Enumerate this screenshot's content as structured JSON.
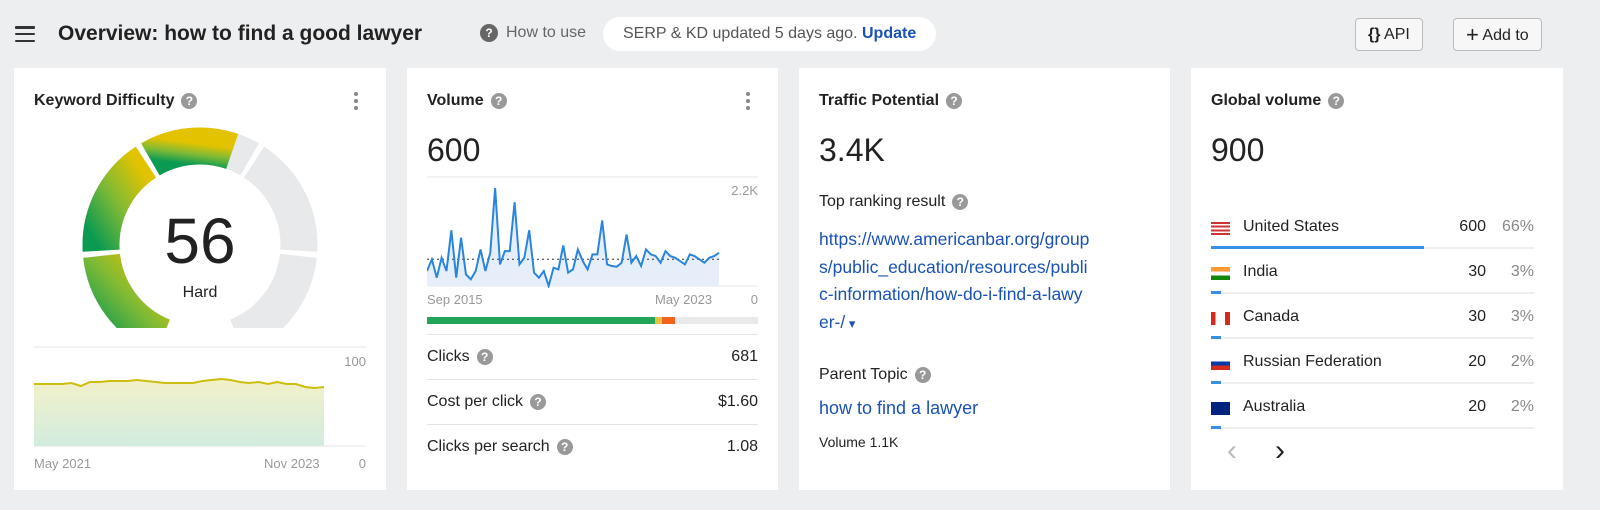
{
  "header": {
    "title": "Overview: how to find a good lawyer",
    "how_to_use": "How to use",
    "serp_status": "SERP & KD updated 5 days ago.",
    "update_link": "Update",
    "api_label": "API",
    "api_icon": "{}",
    "add_label": "Add to",
    "add_icon": "+"
  },
  "kd": {
    "title": "Keyword Difficulty",
    "value": "56",
    "label": "Hard",
    "score": 56,
    "colors": [
      "#0a9a52",
      "#55b046",
      "#9cc228",
      "#d8c205",
      "#e8e9ea"
    ],
    "chart": {
      "type": "area",
      "x_start": "May 2021",
      "x_end": "Nov 2023",
      "y_max_label": "100",
      "y_min_label": "0",
      "ylim": [
        0,
        100
      ],
      "values": [
        62,
        62,
        62,
        62,
        63,
        60,
        64,
        64,
        65,
        65,
        65,
        66,
        65,
        64,
        63,
        63,
        63,
        63,
        65,
        66,
        67,
        66,
        64,
        63,
        64,
        62,
        64,
        62,
        62,
        59,
        58,
        59
      ]
    }
  },
  "volume": {
    "title": "Volume",
    "value": "600",
    "chart": {
      "type": "line",
      "x_start": "Sep 2015",
      "x_end": "May 2023",
      "y_max_label": "2.2K",
      "y_min_label": "0",
      "ylim": [
        0,
        2200
      ],
      "average": 600,
      "values": [
        336,
        597,
        187,
        634,
        336,
        1253,
        187,
        1082,
        261,
        149,
        336,
        821,
        336,
        746,
        2200,
        485,
        783,
        783,
        1880,
        485,
        634,
        1253,
        298,
        187,
        336,
        0,
        410,
        373,
        910,
        298,
        373,
        821,
        560,
        373,
        709,
        709,
        1470,
        485,
        448,
        433,
        522,
        1156,
        522,
        671,
        448,
        821,
        709,
        671,
        522,
        783,
        671,
        634,
        560,
        485,
        709,
        671,
        597,
        522,
        634,
        671,
        746
      ]
    },
    "serp_bar": [
      {
        "share": 69,
        "color": "#22a55b"
      },
      {
        "share": 2,
        "color": "#e9c23f"
      },
      {
        "share": 4,
        "color": "#f2641d"
      }
    ],
    "metrics": [
      {
        "label": "Clicks",
        "value": "681"
      },
      {
        "label": "Cost per click",
        "value": "$1.60"
      },
      {
        "label": "Clicks per search",
        "value": "1.08"
      }
    ]
  },
  "traffic": {
    "title": "Traffic Potential",
    "value": "3.4K",
    "top_label": "Top ranking result",
    "top_url_lines": [
      "https://www.americanbar.org/group",
      "s/public_education/resources/publi",
      "c-information/how-do-i-find-a-lawy",
      "er-/"
    ],
    "parent_label": "Parent Topic",
    "parent_link": "how to find a lawyer",
    "parent_volume": "Volume 1.1K"
  },
  "global": {
    "title": "Global volume",
    "value": "900",
    "countries": [
      {
        "name": "United States",
        "volume": "600",
        "pct": "66%",
        "share": 66,
        "flag": "us"
      },
      {
        "name": "India",
        "volume": "30",
        "pct": "3%",
        "share": 3,
        "flag": "in"
      },
      {
        "name": "Canada",
        "volume": "30",
        "pct": "3%",
        "share": 3,
        "flag": "ca"
      },
      {
        "name": "Russian Federation",
        "volume": "20",
        "pct": "2%",
        "share": 2,
        "flag": "ru"
      },
      {
        "name": "Australia",
        "volume": "20",
        "pct": "2%",
        "share": 2,
        "flag": "au"
      }
    ],
    "prev_icon": "‹",
    "next_icon": "›"
  }
}
